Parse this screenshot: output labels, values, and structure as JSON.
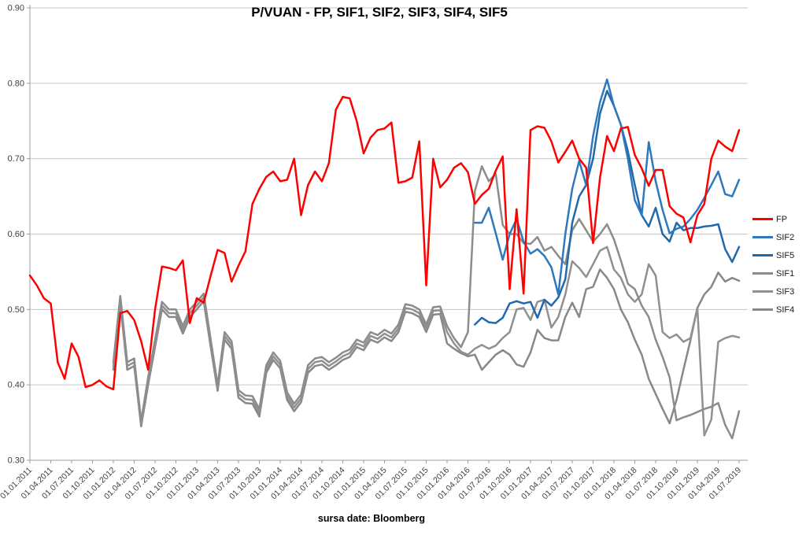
{
  "title": "P/VUAN - FP, SIF1, SIF2, SIF3, SIF4, SIF5",
  "footer": {
    "label": "sursa date: Bloomberg"
  },
  "legend": {
    "position": "right",
    "items": [
      {
        "label": "FP",
        "color": "#FF0000"
      },
      {
        "label": "SIF2",
        "color": "#2E79BE"
      },
      {
        "label": "SIF5",
        "color": "#2268AC"
      },
      {
        "label": "SIF1",
        "color": "#8C8C8C"
      },
      {
        "label": "SIF3",
        "color": "#909090"
      },
      {
        "label": "SIF4",
        "color": "#888888"
      }
    ]
  },
  "chart_data": {
    "type": "line",
    "title": "P/VUAN - FP, SIF1, SIF2, SIF3, SIF4, SIF5",
    "xlabel": "sursa date: Bloomberg",
    "ylabel": "",
    "ylim": [
      0.3,
      0.9
    ],
    "y_ticks": [
      "0.90",
      "0.80",
      "0.70",
      "0.60",
      "0.50",
      "0.40",
      "0.30"
    ],
    "grid": true,
    "legend_position": "right",
    "months_per_tick": 3,
    "total_months": 103,
    "x_tick_labels": [
      "01.01.2011",
      "01.04.2011",
      "01.07.2011",
      "01.10.2011",
      "01.01.2012",
      "01.04.2012",
      "01.07.2012",
      "01.10.2012",
      "01.01.2013",
      "01.04.2013",
      "01.07.2013",
      "01.10.2013",
      "01.01.2014",
      "01.04.2014",
      "01.07.2014",
      "01.10.2014",
      "01.01.2015",
      "01.04.2015",
      "01.07.2015",
      "01.10.2015",
      "01.01.2016",
      "01.04.2016",
      "01.07.2016",
      "01.10.2016",
      "01.01.2017",
      "01.04.2017",
      "01.07.2017",
      "01.10.2017",
      "01.01.2018",
      "01.04.2018",
      "01.07.2018",
      "01.10.2018",
      "01.01.2019",
      "01.04.2019",
      "01.07.2019"
    ],
    "series": [
      {
        "name": "FP",
        "color": "#FF0000",
        "start_month": 0,
        "values": [
          0.545,
          0.532,
          0.515,
          0.508,
          0.43,
          0.408,
          0.455,
          0.437,
          0.397,
          0.4,
          0.406,
          0.398,
          0.394,
          0.495,
          0.498,
          0.486,
          0.458,
          0.42,
          0.5,
          0.557,
          0.555,
          0.552,
          0.565,
          0.482,
          0.515,
          0.509,
          0.545,
          0.579,
          0.575,
          0.537,
          0.558,
          0.577,
          0.64,
          0.66,
          0.676,
          0.683,
          0.67,
          0.672,
          0.7,
          0.625,
          0.665,
          0.683,
          0.67,
          0.694,
          0.765,
          0.782,
          0.78,
          0.75,
          0.707,
          0.728,
          0.738,
          0.74,
          0.748,
          0.668,
          0.67,
          0.675,
          0.723,
          0.532,
          0.7,
          0.662,
          0.672,
          0.688,
          0.694,
          0.682,
          0.64,
          0.652,
          0.66,
          0.684,
          0.703,
          0.527,
          0.633,
          0.521,
          0.738,
          0.743,
          0.741,
          0.723,
          0.695,
          0.709,
          0.724,
          0.7,
          0.688,
          0.588,
          0.675,
          0.73,
          0.71,
          0.74,
          0.742,
          0.705,
          0.687,
          0.664,
          0.685,
          0.685,
          0.637,
          0.627,
          0.622,
          0.589,
          0.625,
          0.64,
          0.7,
          0.724,
          0.716,
          0.71,
          0.738
        ]
      },
      {
        "name": "SIF2",
        "color": "#2E79BE",
        "start_month": 64,
        "values": [
          0.615,
          0.615,
          0.635,
          0.601,
          0.566,
          0.6,
          0.62,
          0.59,
          0.574,
          0.58,
          0.571,
          0.556,
          0.52,
          0.6,
          0.66,
          0.697,
          0.665,
          0.73,
          0.775,
          0.805,
          0.77,
          0.745,
          0.7,
          0.645,
          0.625,
          0.722,
          0.67,
          0.632,
          0.601,
          0.607,
          0.61,
          0.62,
          0.632,
          0.648,
          0.665,
          0.683,
          0.653,
          0.65,
          0.672
        ]
      },
      {
        "name": "SIF5",
        "color": "#2268AC",
        "start_month": 64,
        "values": [
          0.48,
          0.489,
          0.483,
          0.482,
          0.489,
          0.508,
          0.511,
          0.508,
          0.51,
          0.489,
          0.513,
          0.505,
          0.516,
          0.54,
          0.615,
          0.65,
          0.665,
          0.7,
          0.76,
          0.79,
          0.77,
          0.745,
          0.71,
          0.665,
          0.625,
          0.61,
          0.635,
          0.6,
          0.59,
          0.615,
          0.605,
          0.608,
          0.608,
          0.61,
          0.611,
          0.613,
          0.58,
          0.563,
          0.583
        ]
      },
      {
        "name": "SIF1",
        "color": "#8C8C8C",
        "start_month": 12,
        "values": [
          0.43,
          0.518,
          0.43,
          0.435,
          0.352,
          0.41,
          0.46,
          0.51,
          0.5,
          0.5,
          0.478,
          0.5,
          0.51,
          0.521,
          0.46,
          0.4,
          0.47,
          0.458,
          0.393,
          0.386,
          0.385,
          0.368,
          0.426,
          0.443,
          0.432,
          0.39,
          0.375,
          0.387,
          0.426,
          0.435,
          0.437,
          0.43,
          0.436,
          0.443,
          0.447,
          0.46,
          0.456,
          0.47,
          0.466,
          0.473,
          0.468,
          0.48,
          0.507,
          0.505,
          0.5,
          0.48,
          0.503,
          0.504,
          0.478,
          0.462,
          0.45,
          0.47,
          0.657,
          0.69,
          0.67,
          0.68,
          0.612,
          0.6,
          0.6,
          0.588,
          0.587,
          0.596,
          0.578,
          0.583,
          0.571,
          0.56,
          0.605,
          0.62,
          0.605,
          0.59,
          0.6,
          0.613,
          0.593,
          0.565,
          0.534,
          0.527,
          0.505,
          0.49,
          0.46,
          0.437,
          0.41,
          0.353,
          0.357,
          0.36,
          0.364,
          0.368,
          0.371,
          0.376,
          0.347,
          0.329,
          0.365
        ]
      },
      {
        "name": "SIF3",
        "color": "#909090",
        "start_month": 12,
        "values": [
          0.425,
          0.512,
          0.425,
          0.43,
          0.348,
          0.405,
          0.455,
          0.505,
          0.495,
          0.495,
          0.473,
          0.495,
          0.505,
          0.516,
          0.455,
          0.396,
          0.465,
          0.453,
          0.388,
          0.381,
          0.38,
          0.363,
          0.421,
          0.438,
          0.427,
          0.385,
          0.37,
          0.382,
          0.421,
          0.43,
          0.432,
          0.425,
          0.431,
          0.438,
          0.442,
          0.455,
          0.451,
          0.465,
          0.461,
          0.468,
          0.463,
          0.475,
          0.502,
          0.5,
          0.495,
          0.475,
          0.498,
          0.499,
          0.47,
          0.455,
          0.444,
          0.44,
          0.448,
          0.453,
          0.448,
          0.452,
          0.462,
          0.47,
          0.5,
          0.502,
          0.486,
          0.51,
          0.513,
          0.476,
          0.49,
          0.52,
          0.564,
          0.555,
          0.543,
          0.56,
          0.578,
          0.583,
          0.553,
          0.542,
          0.52,
          0.51,
          0.52,
          0.56,
          0.545,
          0.47,
          0.462,
          0.467,
          0.457,
          0.462,
          0.502,
          0.333,
          0.354,
          0.457,
          0.462,
          0.465,
          0.463
        ]
      },
      {
        "name": "SIF4",
        "color": "#888888",
        "start_month": 12,
        "values": [
          0.42,
          0.508,
          0.42,
          0.425,
          0.345,
          0.4,
          0.45,
          0.5,
          0.49,
          0.49,
          0.468,
          0.49,
          0.5,
          0.511,
          0.45,
          0.392,
          0.46,
          0.448,
          0.383,
          0.376,
          0.375,
          0.358,
          0.416,
          0.433,
          0.422,
          0.38,
          0.365,
          0.377,
          0.416,
          0.425,
          0.427,
          0.42,
          0.426,
          0.433,
          0.437,
          0.45,
          0.446,
          0.46,
          0.456,
          0.463,
          0.458,
          0.47,
          0.497,
          0.495,
          0.49,
          0.47,
          0.493,
          0.494,
          0.455,
          0.448,
          0.442,
          0.438,
          0.44,
          0.42,
          0.43,
          0.44,
          0.446,
          0.44,
          0.427,
          0.424,
          0.443,
          0.473,
          0.462,
          0.459,
          0.459,
          0.49,
          0.509,
          0.49,
          0.527,
          0.53,
          0.553,
          0.542,
          0.527,
          0.5,
          0.483,
          0.46,
          0.44,
          0.408,
          0.388,
          0.368,
          0.349,
          0.38,
          0.42,
          0.459,
          0.502,
          0.52,
          0.53,
          0.549,
          0.537,
          0.542,
          0.538
        ]
      }
    ]
  }
}
